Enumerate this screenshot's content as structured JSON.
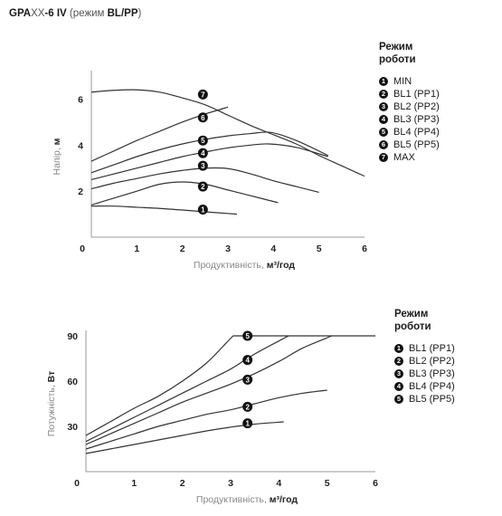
{
  "header": {
    "model_bold": "GPA",
    "model_light": "XX",
    "model_suffix": "-6 IV",
    "mode_prefix": " (режим ",
    "mode_bold": "BL/PP",
    "mode_suffix": ")"
  },
  "legend_top": {
    "title_line1": "Режим",
    "title_line2": "роботи",
    "items": [
      {
        "badge": "1",
        "label": "MIN"
      },
      {
        "badge": "2",
        "label": "BL1 (PP1)"
      },
      {
        "badge": "3",
        "label": "BL2 (PP2)"
      },
      {
        "badge": "4",
        "label": "BL3 (PP3)"
      },
      {
        "badge": "5",
        "label": "BL4 (PP4)"
      },
      {
        "badge": "6",
        "label": "BL5 (PP5)"
      },
      {
        "badge": "7",
        "label": "MAX"
      }
    ]
  },
  "legend_bottom": {
    "title_line1": "Режим",
    "title_line2": "роботи",
    "items": [
      {
        "badge": "1",
        "label": "BL1 (PP1)"
      },
      {
        "badge": "2",
        "label": "BL2 (PP2)"
      },
      {
        "badge": "3",
        "label": "BL3 (PP3)"
      },
      {
        "badge": "4",
        "label": "BL4 (PP4)"
      },
      {
        "badge": "5",
        "label": "BL5 (PP5)"
      }
    ]
  },
  "chart_data": [
    {
      "type": "line",
      "xlabel_prefix": "Продуктивність, ",
      "xlabel_unit": "м³/год",
      "ylabel_prefix": "Напір, ",
      "ylabel_unit": "м",
      "xlim": [
        0,
        6
      ],
      "ylim": [
        0,
        7
      ],
      "x_ticks": [
        "0",
        "1",
        "2",
        "3",
        "4",
        "5",
        "6"
      ],
      "y_ticks": [
        "2",
        "4",
        "6"
      ],
      "grid": false,
      "legend_position": "right",
      "series": [
        {
          "badge": "1",
          "badge_at": [
            2.45,
            1.2
          ],
          "points": [
            [
              0,
              1.35
            ],
            [
              0.5,
              1.35
            ],
            [
              1,
              1.3
            ],
            [
              1.5,
              1.25
            ],
            [
              2,
              1.18
            ],
            [
              2.5,
              1.1
            ],
            [
              3.2,
              1.0
            ]
          ]
        },
        {
          "badge": "2",
          "badge_at": [
            2.45,
            2.2
          ],
          "points": [
            [
              0,
              1.4
            ],
            [
              0.5,
              1.7
            ],
            [
              1,
              2.0
            ],
            [
              1.5,
              2.3
            ],
            [
              2,
              2.4
            ],
            [
              2.5,
              2.3
            ],
            [
              3,
              2.05
            ],
            [
              3.5,
              1.8
            ],
            [
              4.1,
              1.5
            ]
          ]
        },
        {
          "badge": "3",
          "badge_at": [
            2.45,
            3.1
          ],
          "points": [
            [
              0,
              2.1
            ],
            [
              0.5,
              2.35
            ],
            [
              1,
              2.55
            ],
            [
              1.5,
              2.75
            ],
            [
              2,
              2.9
            ],
            [
              2.5,
              3.0
            ],
            [
              3,
              2.98
            ],
            [
              3.5,
              2.75
            ],
            [
              4,
              2.45
            ],
            [
              4.5,
              2.2
            ],
            [
              5,
              1.95
            ]
          ]
        },
        {
          "badge": "4",
          "badge_at": [
            2.45,
            3.65
          ],
          "points": [
            [
              0,
              2.5
            ],
            [
              0.5,
              2.75
            ],
            [
              1,
              3.0
            ],
            [
              1.5,
              3.25
            ],
            [
              2,
              3.5
            ],
            [
              2.5,
              3.7
            ],
            [
              3,
              3.88
            ],
            [
              3.5,
              4.0
            ],
            [
              3.9,
              4.05
            ],
            [
              4.5,
              3.9
            ],
            [
              5.2,
              3.5
            ]
          ]
        },
        {
          "badge": "5",
          "badge_at": [
            2.45,
            4.2
          ],
          "points": [
            [
              0,
              2.8
            ],
            [
              0.5,
              3.15
            ],
            [
              1,
              3.5
            ],
            [
              1.5,
              3.8
            ],
            [
              2,
              4.05
            ],
            [
              2.5,
              4.25
            ],
            [
              3,
              4.4
            ],
            [
              3.5,
              4.5
            ],
            [
              3.95,
              4.55
            ],
            [
              4.5,
              4.2
            ],
            [
              5.2,
              3.55
            ]
          ]
        },
        {
          "badge": "6",
          "badge_at": [
            2.45,
            5.2
          ],
          "points": [
            [
              0,
              3.3
            ],
            [
              0.5,
              3.75
            ],
            [
              1,
              4.2
            ],
            [
              1.5,
              4.6
            ],
            [
              2,
              5.0
            ],
            [
              2.5,
              5.35
            ],
            [
              3,
              5.65
            ]
          ]
        },
        {
          "badge": "7",
          "badge_at": [
            2.45,
            6.2
          ],
          "points": [
            [
              0,
              6.3
            ],
            [
              0.5,
              6.38
            ],
            [
              1,
              6.4
            ],
            [
              1.5,
              6.3
            ],
            [
              2,
              6.05
            ],
            [
              2.5,
              5.75
            ],
            [
              3,
              5.3
            ],
            [
              3.5,
              4.85
            ],
            [
              4,
              4.45
            ],
            [
              4.5,
              4.05
            ],
            [
              5,
              3.55
            ],
            [
              5.5,
              3.1
            ],
            [
              6,
              2.65
            ]
          ]
        }
      ]
    },
    {
      "type": "line",
      "xlabel_prefix": "Продуктивність, ",
      "xlabel_unit": "м³/год",
      "ylabel_prefix": "Потужність, ",
      "ylabel_unit": "Вт",
      "xlim": [
        0,
        6
      ],
      "ylim": [
        0,
        90
      ],
      "x_ticks": [
        "0",
        "1",
        "2",
        "3",
        "4",
        "5",
        "6"
      ],
      "y_ticks": [
        "30",
        "60",
        "90"
      ],
      "grid": false,
      "legend_position": "right",
      "series": [
        {
          "badge": "1",
          "badge_at": [
            3.35,
            32
          ],
          "points": [
            [
              0,
              12
            ],
            [
              0.5,
              15
            ],
            [
              1,
              18
            ],
            [
              1.5,
              21
            ],
            [
              2,
              24
            ],
            [
              2.5,
              27
            ],
            [
              3,
              29.5
            ],
            [
              3.5,
              31.5
            ],
            [
              4.1,
              33
            ]
          ]
        },
        {
          "badge": "2",
          "badge_at": [
            3.35,
            43
          ],
          "points": [
            [
              0,
              15
            ],
            [
              0.5,
              20
            ],
            [
              1,
              25
            ],
            [
              1.5,
              30
            ],
            [
              2,
              34
            ],
            [
              2.5,
              38
            ],
            [
              3,
              41
            ],
            [
              3.5,
              45
            ],
            [
              4,
              49
            ],
            [
              4.5,
              52
            ],
            [
              5,
              54
            ]
          ]
        },
        {
          "badge": "3",
          "badge_at": [
            3.35,
            61
          ],
          "points": [
            [
              0,
              18
            ],
            [
              0.5,
              25
            ],
            [
              1,
              32
            ],
            [
              1.5,
              39
            ],
            [
              2,
              46
            ],
            [
              2.5,
              52
            ],
            [
              3,
              58
            ],
            [
              3.5,
              65
            ],
            [
              4,
              73
            ],
            [
              4.5,
              82
            ],
            [
              5.1,
              90
            ]
          ]
        },
        {
          "badge": "4",
          "badge_at": [
            3.35,
            74
          ],
          "points": [
            [
              0,
              20
            ],
            [
              0.5,
              28
            ],
            [
              1,
              36
            ],
            [
              1.5,
              44
            ],
            [
              2,
              52
            ],
            [
              2.5,
              60
            ],
            [
              3,
              68
            ],
            [
              3.5,
              78
            ],
            [
              4.2,
              90
            ]
          ]
        },
        {
          "badge": "5",
          "badge_at": [
            3.35,
            90
          ],
          "points": [
            [
              0,
              24
            ],
            [
              0.5,
              33
            ],
            [
              1,
              42
            ],
            [
              1.5,
              50
            ],
            [
              2,
              60
            ],
            [
              2.5,
              72
            ],
            [
              2.9,
              85
            ],
            [
              3.05,
              90
            ]
          ]
        }
      ],
      "limit_line": {
        "y": 90,
        "x": [
          3.05,
          6
        ]
      }
    }
  ]
}
